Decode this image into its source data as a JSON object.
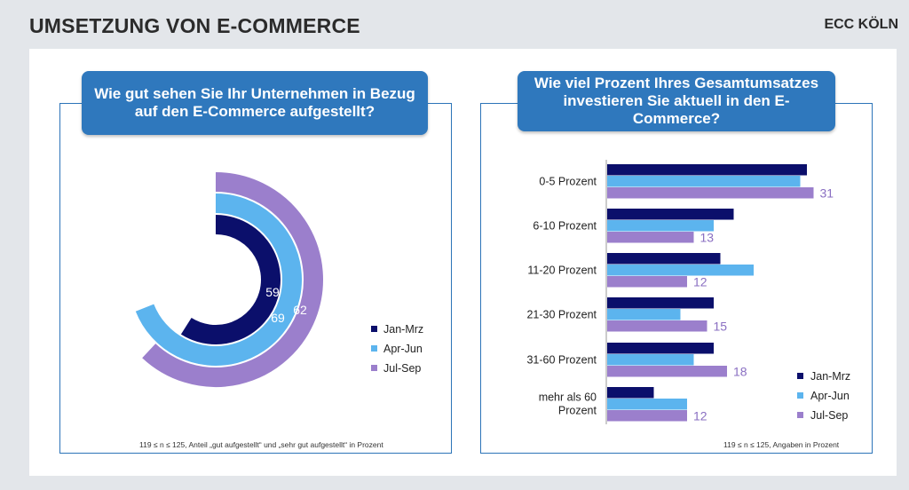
{
  "header": {
    "title": "UMSETZUNG VON E-COMMERCE",
    "brand": "ECC KÖLN"
  },
  "colors": {
    "jan_mrz": "#0b0f6b",
    "apr_jun": "#5cb4ee",
    "jul_sep": "#9b7fcc",
    "frame_blue": "#2c74b8",
    "question_box": "#2f78bd"
  },
  "chart_data": [
    {
      "type": "radial_bar",
      "title": "Wie gut sehen Sie Ihr Unternehmen in Bezug auf den E-Commerce aufgestellt?",
      "unit": "percent",
      "max": 100,
      "series": [
        {
          "name": "Jan-Mrz",
          "value": 59,
          "label": "59"
        },
        {
          "name": "Apr-Jun",
          "value": 69,
          "label": "69"
        },
        {
          "name": "Jul-Sep",
          "value": 62,
          "label": "62"
        }
      ],
      "legend": [
        "Jan-Mrz",
        "Apr-Jun",
        "Jul-Sep"
      ],
      "legend_position": "right",
      "footnote": "119 ≤ n ≤ 125, Anteil „gut aufgestellt“ und „sehr gut aufgestellt“ in Prozent"
    },
    {
      "type": "bar",
      "orientation": "horizontal",
      "title": "Wie viel Prozent Ihres Gesamtumsatzes investieren Sie aktuell in den E-Commerce?",
      "categories": [
        "0-5 Prozent",
        "6-10 Prozent",
        "11-20 Prozent",
        "21-30 Prozent",
        "31-60 Prozent",
        "mehr als 60 Prozent"
      ],
      "series": [
        {
          "name": "Jan-Mrz",
          "values": [
            30,
            19,
            17,
            16,
            16,
            7
          ]
        },
        {
          "name": "Apr-Jun",
          "values": [
            29,
            16,
            22,
            11,
            13,
            12
          ]
        },
        {
          "name": "Jul-Sep",
          "values": [
            31,
            13,
            12,
            15,
            18,
            12
          ]
        }
      ],
      "labeled_series": "Jul-Sep",
      "xlim": [
        0,
        35
      ],
      "legend": [
        "Jan-Mrz",
        "Apr-Jun",
        "Jul-Sep"
      ],
      "legend_position": "bottom-right",
      "footnote": "119 ≤ n ≤ 125, Angaben in Prozent"
    }
  ]
}
